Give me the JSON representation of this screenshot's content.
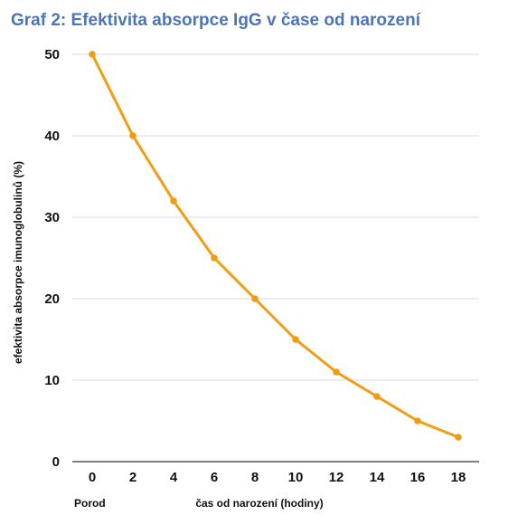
{
  "chart_data": {
    "type": "line",
    "title": "Graf 2: Efektivita absorpce IgG v čase od narození",
    "xlabel": "čas od narození (hodiny)",
    "x_first_label": "Porod",
    "ylabel": "efektivita absorpce imunoglobulinů (%)",
    "x": [
      0,
      2,
      4,
      6,
      8,
      10,
      12,
      14,
      16,
      18
    ],
    "series": [
      {
        "values": [
          50,
          40,
          32,
          25,
          20,
          15,
          11,
          8,
          5,
          3
        ]
      }
    ],
    "ylim": [
      0,
      50
    ],
    "yticks": [
      0,
      10,
      20,
      30,
      40,
      50
    ],
    "grid": true,
    "line_color": "#f29c11",
    "title_color": "#4a76b8"
  }
}
